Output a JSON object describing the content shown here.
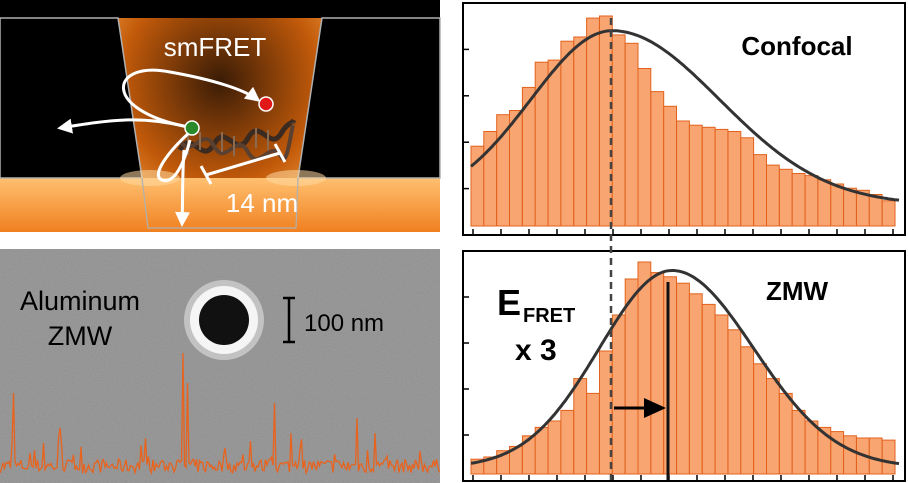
{
  "zmw_diagram": {
    "title": "smFRET",
    "distance_label": "14 nm"
  },
  "sem_image": {
    "material_label_line1": "Aluminum",
    "material_label_line2": "ZMW",
    "scale_bar_label": "100 nm"
  },
  "annotations": {
    "efret_main": "E",
    "efret_sub": "FRET",
    "factor": "x 3"
  },
  "colors": {
    "bar_fill": "#f9a572",
    "bar_stroke": "#e2621c",
    "fit_curve": "#333333",
    "trace": "#e8631e",
    "acceptor_dye": "#e01818",
    "donor_dye": "#2a8a2a"
  },
  "chart_data": [
    {
      "type": "bar",
      "title": "Confocal",
      "values": [
        0.38,
        0.45,
        0.53,
        0.55,
        0.66,
        0.78,
        0.79,
        0.88,
        0.9,
        0.99,
        1.0,
        0.91,
        0.87,
        0.75,
        0.64,
        0.57,
        0.5,
        0.48,
        0.47,
        0.46,
        0.45,
        0.42,
        0.34,
        0.29,
        0.27,
        0.25,
        0.24,
        0.22,
        0.2,
        0.18,
        0.17,
        0.15,
        0.12
      ],
      "fit_curve": true,
      "marker_line": {
        "style": "dashed",
        "bin": 10
      }
    },
    {
      "type": "bar",
      "title": "ZMW",
      "values": [
        0.07,
        0.08,
        0.11,
        0.13,
        0.18,
        0.22,
        0.25,
        0.3,
        0.45,
        0.38,
        0.58,
        0.75,
        0.92,
        1.0,
        0.95,
        0.93,
        0.9,
        0.85,
        0.8,
        0.75,
        0.68,
        0.6,
        0.52,
        0.45,
        0.38,
        0.3,
        0.25,
        0.22,
        0.2,
        0.18,
        0.17,
        0.17,
        0.16
      ],
      "fit_curve": true,
      "marker_line": {
        "style": "solid",
        "bin": 14
      },
      "shift_arrow": {
        "from_bin": 10,
        "to_bin": 14
      }
    }
  ]
}
